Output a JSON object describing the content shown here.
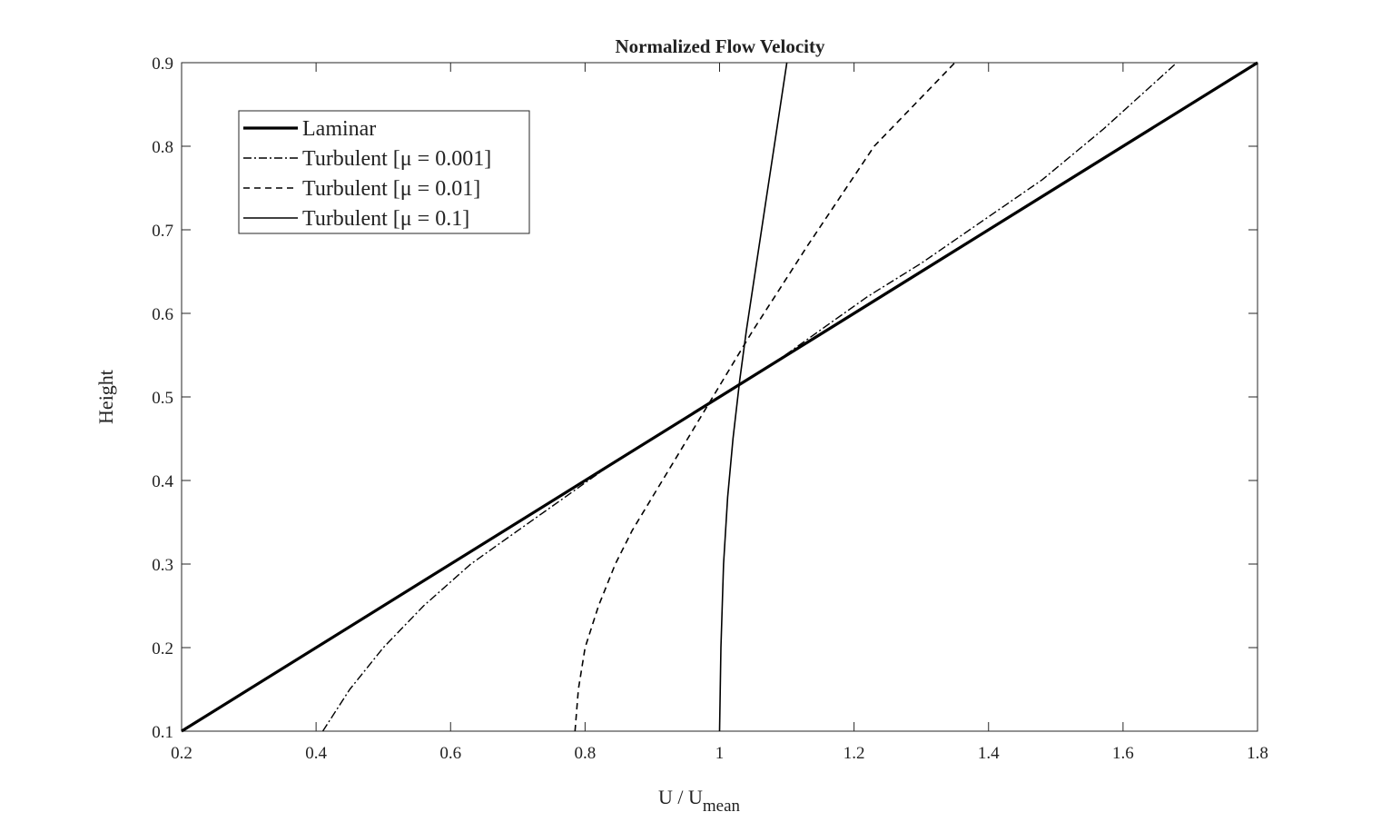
{
  "chart_data": {
    "type": "line",
    "title": "Normalized Flow Velocity",
    "xlabel": "U / U",
    "xlabel_subscript": "mean",
    "ylabel": "Height",
    "xlim": [
      0.2,
      1.8
    ],
    "ylim": [
      0.1,
      0.9
    ],
    "x_ticks": [
      "0.2",
      "0.4",
      "0.6",
      "0.8",
      "1",
      "1.2",
      "1.4",
      "1.6",
      "1.8"
    ],
    "y_ticks": [
      "0.1",
      "0.2",
      "0.3",
      "0.4",
      "0.5",
      "0.6",
      "0.7",
      "0.8",
      "0.9"
    ],
    "grid": false,
    "legend_position": "top-left",
    "series": [
      {
        "name": "Laminar",
        "style": "solid-thick",
        "x": [
          0.2,
          1.8
        ],
        "y": [
          0.1,
          0.9
        ]
      },
      {
        "name": "Turbulent [μ = 0.001]",
        "style": "dash-dot",
        "x": [
          0.41,
          0.45,
          0.5,
          0.56,
          0.63,
          0.7,
          0.77,
          0.84,
          0.9,
          0.96,
          1.02,
          1.08,
          1.15,
          1.22,
          1.3,
          1.39,
          1.48,
          1.57,
          1.68
        ],
        "y": [
          0.1,
          0.15,
          0.2,
          0.25,
          0.3,
          0.34,
          0.38,
          0.42,
          0.45,
          0.48,
          0.51,
          0.54,
          0.58,
          0.62,
          0.66,
          0.71,
          0.76,
          0.82,
          0.9
        ]
      },
      {
        "name": "Turbulent [μ = 0.01]",
        "style": "dashed",
        "x": [
          0.785,
          0.79,
          0.8,
          0.82,
          0.845,
          0.87,
          0.9,
          0.93,
          0.96,
          0.99,
          1.02,
          1.05,
          1.09,
          1.13,
          1.18,
          1.23,
          1.29,
          1.35
        ],
        "y": [
          0.1,
          0.15,
          0.2,
          0.25,
          0.3,
          0.34,
          0.38,
          0.42,
          0.46,
          0.5,
          0.54,
          0.58,
          0.63,
          0.68,
          0.74,
          0.8,
          0.85,
          0.9
        ]
      },
      {
        "name": "Turbulent [μ = 0.1]",
        "style": "solid-thin",
        "x": [
          1.0,
          1.002,
          1.006,
          1.012,
          1.02,
          1.03,
          1.04,
          1.055,
          1.07,
          1.085,
          1.1
        ],
        "y": [
          0.1,
          0.2,
          0.3,
          0.38,
          0.45,
          0.52,
          0.58,
          0.66,
          0.74,
          0.82,
          0.9
        ]
      }
    ]
  }
}
